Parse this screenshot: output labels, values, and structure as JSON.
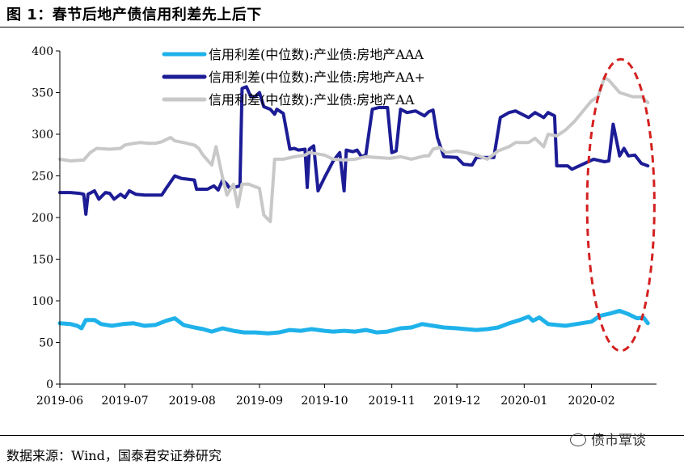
{
  "figure": {
    "title": "图 1：春节后地产债信用利差先上后下",
    "source": "数据来源：Wind，国泰君安证券研究",
    "watermark": "债市覃谈",
    "watermark_icon": "wechat-icon"
  },
  "chart_data": {
    "type": "line",
    "title": "图 1：春节后地产债信用利差先上后下",
    "xlabel": "",
    "ylabel": "",
    "x_ticks": [
      "2019-06",
      "2019-07",
      "2019-08",
      "2019-09",
      "2019-10",
      "2019-11",
      "2019-12",
      "2020-01",
      "2020-02"
    ],
    "ylim": [
      0,
      400
    ],
    "y_ticks": [
      0,
      50,
      100,
      150,
      200,
      250,
      300,
      350,
      400
    ],
    "grid": false,
    "legend_position": "top",
    "annotation": {
      "type": "dashed-ellipse",
      "color": "#d42020",
      "x_range": [
        "2020-01-30",
        "2020-03-01"
      ],
      "y_range": [
        40,
        390
      ]
    },
    "series": [
      {
        "name": "信用利差(中位数):产业债:房地产AA+",
        "color": "#1c1c96",
        "width": 4,
        "points": [
          [
            "2019-06-01",
            230
          ],
          [
            "2019-06-06",
            230
          ],
          [
            "2019-06-10",
            229
          ],
          [
            "2019-06-12",
            228
          ],
          [
            "2019-06-13",
            204
          ],
          [
            "2019-06-14",
            228
          ],
          [
            "2019-06-17",
            232
          ],
          [
            "2019-06-19",
            222
          ],
          [
            "2019-06-22",
            230
          ],
          [
            "2019-06-24",
            229
          ],
          [
            "2019-06-26",
            222
          ],
          [
            "2019-06-29",
            228
          ],
          [
            "2019-07-01",
            224
          ],
          [
            "2019-07-03",
            232
          ],
          [
            "2019-07-06",
            228
          ],
          [
            "2019-07-10",
            227
          ],
          [
            "2019-07-18",
            227
          ],
          [
            "2019-07-20",
            235
          ],
          [
            "2019-07-24",
            250
          ],
          [
            "2019-07-27",
            247
          ],
          [
            "2019-08-02",
            245
          ],
          [
            "2019-08-03",
            234
          ],
          [
            "2019-08-08",
            234
          ],
          [
            "2019-08-11",
            238
          ],
          [
            "2019-08-13",
            233
          ],
          [
            "2019-08-15",
            245
          ],
          [
            "2019-08-17",
            240
          ],
          [
            "2019-08-18",
            236
          ],
          [
            "2019-08-20",
            236
          ],
          [
            "2019-08-23",
            238
          ],
          [
            "2019-08-24",
            355
          ],
          [
            "2019-08-26",
            357
          ],
          [
            "2019-08-28",
            345
          ],
          [
            "2019-08-30",
            345
          ],
          [
            "2019-09-01",
            350
          ],
          [
            "2019-09-03",
            333
          ],
          [
            "2019-09-06",
            330
          ],
          [
            "2019-09-08",
            324
          ],
          [
            "2019-09-09",
            330
          ],
          [
            "2019-09-12",
            325
          ],
          [
            "2019-09-15",
            282
          ],
          [
            "2019-09-17",
            283
          ],
          [
            "2019-09-19",
            281
          ],
          [
            "2019-09-22",
            282
          ],
          [
            "2019-09-23",
            236
          ],
          [
            "2019-09-24",
            282
          ],
          [
            "2019-09-26",
            286
          ],
          [
            "2019-09-28",
            232
          ],
          [
            "2019-10-01",
            248
          ],
          [
            "2019-10-05",
            268
          ],
          [
            "2019-10-08",
            278
          ],
          [
            "2019-10-10",
            232
          ],
          [
            "2019-10-11",
            281
          ],
          [
            "2019-10-14",
            279
          ],
          [
            "2019-10-16",
            281
          ],
          [
            "2019-10-18",
            273
          ],
          [
            "2019-10-20",
            275
          ],
          [
            "2019-10-23",
            330
          ],
          [
            "2019-10-26",
            332
          ],
          [
            "2019-10-30",
            332
          ],
          [
            "2019-11-01",
            278
          ],
          [
            "2019-11-03",
            280
          ],
          [
            "2019-11-05",
            330
          ],
          [
            "2019-11-08",
            326
          ],
          [
            "2019-11-12",
            328
          ],
          [
            "2019-11-16",
            322
          ],
          [
            "2019-11-18",
            327
          ],
          [
            "2019-11-20",
            329
          ],
          [
            "2019-11-22",
            296
          ],
          [
            "2019-11-25",
            273
          ],
          [
            "2019-12-01",
            272
          ],
          [
            "2019-12-04",
            264
          ],
          [
            "2019-12-08",
            263
          ],
          [
            "2019-12-10",
            272
          ],
          [
            "2019-12-14",
            272
          ],
          [
            "2019-12-18",
            272
          ],
          [
            "2019-12-21",
            320
          ],
          [
            "2019-12-25",
            326
          ],
          [
            "2019-12-28",
            328
          ],
          [
            "2020-01-03",
            320
          ],
          [
            "2020-01-06",
            326
          ],
          [
            "2020-01-10",
            320
          ],
          [
            "2020-01-12",
            326
          ],
          [
            "2020-01-15",
            322
          ],
          [
            "2020-01-16",
            262
          ],
          [
            "2020-01-21",
            262
          ],
          [
            "2020-01-23",
            258
          ],
          [
            "2020-02-02",
            270
          ],
          [
            "2020-02-07",
            267
          ],
          [
            "2020-02-09",
            268
          ],
          [
            "2020-02-11",
            312
          ],
          [
            "2020-02-14",
            274
          ],
          [
            "2020-02-16",
            283
          ],
          [
            "2020-02-18",
            274
          ],
          [
            "2020-02-21",
            275
          ],
          [
            "2020-02-24",
            265
          ],
          [
            "2020-02-27",
            262
          ]
        ]
      },
      {
        "name": "信用利差(中位数):产业债:房地产AA",
        "color": "#c8c8c8",
        "width": 4,
        "points": [
          [
            "2019-06-01",
            270
          ],
          [
            "2019-06-06",
            268
          ],
          [
            "2019-06-12",
            269
          ],
          [
            "2019-06-15",
            278
          ],
          [
            "2019-06-18",
            283
          ],
          [
            "2019-06-24",
            282
          ],
          [
            "2019-06-29",
            283
          ],
          [
            "2019-07-01",
            287
          ],
          [
            "2019-07-05",
            289
          ],
          [
            "2019-07-08",
            290
          ],
          [
            "2019-07-12",
            289
          ],
          [
            "2019-07-15",
            289
          ],
          [
            "2019-07-18",
            291
          ],
          [
            "2019-07-22",
            296
          ],
          [
            "2019-07-24",
            292
          ],
          [
            "2019-07-28",
            290
          ],
          [
            "2019-08-02",
            287
          ],
          [
            "2019-08-04",
            283
          ],
          [
            "2019-08-06",
            275
          ],
          [
            "2019-08-10",
            263
          ],
          [
            "2019-08-12",
            285
          ],
          [
            "2019-08-15",
            248
          ],
          [
            "2019-08-17",
            227
          ],
          [
            "2019-08-20",
            240
          ],
          [
            "2019-08-22",
            213
          ],
          [
            "2019-08-24",
            240
          ],
          [
            "2019-08-27",
            240
          ],
          [
            "2019-08-30",
            237
          ],
          [
            "2019-09-01",
            235
          ],
          [
            "2019-09-03",
            203
          ],
          [
            "2019-09-06",
            195
          ],
          [
            "2019-09-08",
            270
          ],
          [
            "2019-09-12",
            270
          ],
          [
            "2019-09-17",
            273
          ],
          [
            "2019-09-22",
            275
          ],
          [
            "2019-09-24",
            278
          ],
          [
            "2019-10-01",
            275
          ],
          [
            "2019-10-05",
            270
          ],
          [
            "2019-10-10",
            269
          ],
          [
            "2019-10-15",
            270
          ],
          [
            "2019-10-20",
            273
          ],
          [
            "2019-10-25",
            272
          ],
          [
            "2019-10-31",
            271
          ],
          [
            "2019-11-05",
            273
          ],
          [
            "2019-11-10",
            270
          ],
          [
            "2019-11-16",
            274
          ],
          [
            "2019-11-18",
            274
          ],
          [
            "2019-11-20",
            282
          ],
          [
            "2019-11-23",
            284
          ],
          [
            "2019-11-26",
            278
          ],
          [
            "2019-12-01",
            280
          ],
          [
            "2019-12-05",
            278
          ],
          [
            "2019-12-10",
            275
          ],
          [
            "2019-12-15",
            270
          ],
          [
            "2019-12-20",
            280
          ],
          [
            "2019-12-25",
            285
          ],
          [
            "2019-12-28",
            290
          ],
          [
            "2020-01-03",
            290
          ],
          [
            "2020-01-06",
            295
          ],
          [
            "2020-01-10",
            285
          ],
          [
            "2020-01-12",
            300
          ],
          [
            "2020-01-16",
            298
          ],
          [
            "2020-01-20",
            305
          ],
          [
            "2020-01-24",
            315
          ],
          [
            "2020-02-01",
            340
          ],
          [
            "2020-02-04",
            345
          ],
          [
            "2020-02-07",
            368
          ],
          [
            "2020-02-09",
            365
          ],
          [
            "2020-02-14",
            350
          ],
          [
            "2020-02-20",
            345
          ],
          [
            "2020-02-24",
            345
          ],
          [
            "2020-02-27",
            338
          ]
        ]
      },
      {
        "name": "信用利差(中位数):产业债:房地产AAA",
        "color": "#1fb2ea",
        "width": 5,
        "points": [
          [
            "2019-06-01",
            73
          ],
          [
            "2019-06-06",
            72
          ],
          [
            "2019-06-09",
            70
          ],
          [
            "2019-06-11",
            67
          ],
          [
            "2019-06-13",
            77
          ],
          [
            "2019-06-17",
            77
          ],
          [
            "2019-06-20",
            72
          ],
          [
            "2019-06-25",
            70
          ],
          [
            "2019-06-30",
            72
          ],
          [
            "2019-07-05",
            73
          ],
          [
            "2019-07-10",
            70
          ],
          [
            "2019-07-15",
            71
          ],
          [
            "2019-07-20",
            76
          ],
          [
            "2019-07-24",
            79
          ],
          [
            "2019-07-28",
            71
          ],
          [
            "2019-08-02",
            68
          ],
          [
            "2019-08-06",
            66
          ],
          [
            "2019-08-10",
            63
          ],
          [
            "2019-08-15",
            67
          ],
          [
            "2019-08-20",
            64
          ],
          [
            "2019-08-25",
            62
          ],
          [
            "2019-08-30",
            62
          ],
          [
            "2019-09-05",
            61
          ],
          [
            "2019-09-10",
            62
          ],
          [
            "2019-09-15",
            65
          ],
          [
            "2019-09-20",
            64
          ],
          [
            "2019-09-25",
            66
          ],
          [
            "2019-10-01",
            64
          ],
          [
            "2019-10-05",
            63
          ],
          [
            "2019-10-10",
            64
          ],
          [
            "2019-10-15",
            63
          ],
          [
            "2019-10-20",
            65
          ],
          [
            "2019-10-25",
            62
          ],
          [
            "2019-10-30",
            63
          ],
          [
            "2019-11-05",
            67
          ],
          [
            "2019-11-10",
            68
          ],
          [
            "2019-11-15",
            72
          ],
          [
            "2019-11-20",
            70
          ],
          [
            "2019-11-25",
            68
          ],
          [
            "2019-12-01",
            67
          ],
          [
            "2019-12-05",
            66
          ],
          [
            "2019-12-10",
            65
          ],
          [
            "2019-12-15",
            66
          ],
          [
            "2019-12-20",
            68
          ],
          [
            "2019-12-25",
            73
          ],
          [
            "2019-12-30",
            77
          ],
          [
            "2020-01-03",
            81
          ],
          [
            "2020-01-05",
            76
          ],
          [
            "2020-01-08",
            80
          ],
          [
            "2020-01-12",
            72
          ],
          [
            "2020-01-16",
            71
          ],
          [
            "2020-01-20",
            70
          ],
          [
            "2020-01-25",
            72
          ],
          [
            "2020-02-01",
            75
          ],
          [
            "2020-02-05",
            82
          ],
          [
            "2020-02-10",
            85
          ],
          [
            "2020-02-14",
            88
          ],
          [
            "2020-02-18",
            84
          ],
          [
            "2020-02-22",
            79
          ],
          [
            "2020-02-25",
            80
          ],
          [
            "2020-02-27",
            73
          ]
        ]
      }
    ],
    "legend": [
      {
        "label": "信用利差(中位数):产业债:房地产AAA",
        "color": "#1fb2ea"
      },
      {
        "label": "信用利差(中位数):产业债:房地产AA+",
        "color": "#1c1c96"
      },
      {
        "label": "信用利差(中位数):产业债:房地产AA",
        "color": "#c8c8c8"
      }
    ]
  }
}
